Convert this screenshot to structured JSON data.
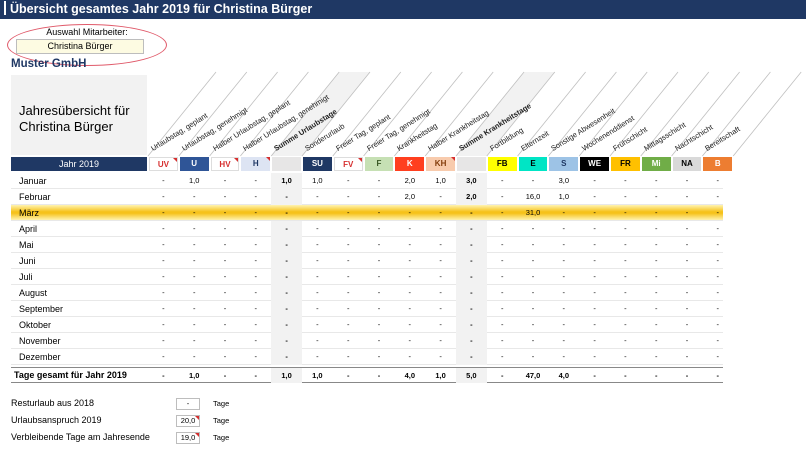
{
  "title": "Übersicht gesamtes Jahr 2019 für Christina Bürger",
  "selector": {
    "label": "Auswahl Mitarbeiter:",
    "value": "Christina Bürger"
  },
  "company": "Muster GmbH",
  "panel_title_line1": "Jahresübersicht für",
  "panel_title_line2": "Christina Bürger",
  "year_header": "Jahr 2019",
  "columns": [
    {
      "code": "UV",
      "label": "Urlaubstag, geplant",
      "bg": "#ffffff",
      "fg": "#d62f2f",
      "bold": false
    },
    {
      "code": "U",
      "label": "Urlaubstag, genehmigt",
      "bg": "#2f5597",
      "fg": "#ffffff",
      "bold": false
    },
    {
      "code": "HV",
      "label": "Halber Urlaubstag, geplant",
      "bg": "#ffffff",
      "fg": "#d62f2f",
      "bold": false
    },
    {
      "code": "H",
      "label": "Halber Urlaubstag, genehmigt",
      "bg": "#dde4f3",
      "fg": "#1f3864",
      "bold": false
    },
    {
      "code": "",
      "label": "Summe Urlaubstage",
      "bg": "#e7e6e6",
      "fg": "#000000",
      "bold": true
    },
    {
      "code": "SU",
      "label": "Sonderurlaub",
      "bg": "#1f3864",
      "fg": "#ffffff",
      "bold": false
    },
    {
      "code": "FV",
      "label": "Freier Tag, geplant",
      "bg": "#ffffff",
      "fg": "#d62f2f",
      "bold": false
    },
    {
      "code": "F",
      "label": "Freier Tag, genehmigt",
      "bg": "#c6e0b4",
      "fg": "#375623",
      "bold": false
    },
    {
      "code": "K",
      "label": "Krankheitstag",
      "bg": "#ff3f1f",
      "fg": "#ffffff",
      "bold": false
    },
    {
      "code": "KH",
      "label": "Halber Krankheitstag",
      "bg": "#f8cbad",
      "fg": "#833c0b",
      "bold": false
    },
    {
      "code": "",
      "label": "Summe Krankheitstage",
      "bg": "#e7e6e6",
      "fg": "#000000",
      "bold": true
    },
    {
      "code": "FB",
      "label": "Fortbildung",
      "bg": "#ffff00",
      "fg": "#000000",
      "bold": false
    },
    {
      "code": "E",
      "label": "Elternzeit",
      "bg": "#00e5c5",
      "fg": "#000000",
      "bold": false
    },
    {
      "code": "S",
      "label": "Sonstige Abwesenheit",
      "bg": "#9dc3e6",
      "fg": "#1f3864",
      "bold": false
    },
    {
      "code": "WE",
      "label": "Wochenenddienst",
      "bg": "#000000",
      "fg": "#ffffff",
      "bold": false
    },
    {
      "code": "FR",
      "label": "Frühschicht",
      "bg": "#ffc000",
      "fg": "#000000",
      "bold": false
    },
    {
      "code": "Mi",
      "label": "Mittagsschicht",
      "bg": "#70ad47",
      "fg": "#ffffff",
      "bold": false
    },
    {
      "code": "NA",
      "label": "Nachtschicht",
      "bg": "#d9d9d9",
      "fg": "#000000",
      "bold": false
    },
    {
      "code": "B",
      "label": "Bereitschaft",
      "bg": "#ed7d31",
      "fg": "#ffffff",
      "bold": false
    }
  ],
  "months": [
    {
      "name": "Januar",
      "values": [
        "-",
        "1,0",
        "-",
        "-",
        "1,0",
        "1,0",
        "-",
        "-",
        "2,0",
        "1,0",
        "3,0",
        "-",
        "-",
        "3,0",
        "-",
        "-",
        "-",
        "-",
        "-"
      ]
    },
    {
      "name": "Februar",
      "values": [
        "-",
        "-",
        "-",
        "-",
        "-",
        "-",
        "-",
        "-",
        "2,0",
        "-",
        "2,0",
        "-",
        "16,0",
        "1,0",
        "-",
        "-",
        "-",
        "-",
        "-"
      ]
    },
    {
      "name": "März",
      "values": [
        "-",
        "-",
        "-",
        "-",
        "-",
        "-",
        "-",
        "-",
        "-",
        "-",
        "-",
        "-",
        "31,0",
        "-",
        "-",
        "-",
        "-",
        "-",
        "-"
      ],
      "highlight": true
    },
    {
      "name": "April",
      "values": [
        "-",
        "-",
        "-",
        "-",
        "-",
        "-",
        "-",
        "-",
        "-",
        "-",
        "-",
        "-",
        "-",
        "-",
        "-",
        "-",
        "-",
        "-",
        "-"
      ]
    },
    {
      "name": "Mai",
      "values": [
        "-",
        "-",
        "-",
        "-",
        "-",
        "-",
        "-",
        "-",
        "-",
        "-",
        "-",
        "-",
        "-",
        "-",
        "-",
        "-",
        "-",
        "-",
        "-"
      ]
    },
    {
      "name": "Juni",
      "values": [
        "-",
        "-",
        "-",
        "-",
        "-",
        "-",
        "-",
        "-",
        "-",
        "-",
        "-",
        "-",
        "-",
        "-",
        "-",
        "-",
        "-",
        "-",
        "-"
      ]
    },
    {
      "name": "Juli",
      "values": [
        "-",
        "-",
        "-",
        "-",
        "-",
        "-",
        "-",
        "-",
        "-",
        "-",
        "-",
        "-",
        "-",
        "-",
        "-",
        "-",
        "-",
        "-",
        "-"
      ]
    },
    {
      "name": "August",
      "values": [
        "-",
        "-",
        "-",
        "-",
        "-",
        "-",
        "-",
        "-",
        "-",
        "-",
        "-",
        "-",
        "-",
        "-",
        "-",
        "-",
        "-",
        "-",
        "-"
      ]
    },
    {
      "name": "September",
      "values": [
        "-",
        "-",
        "-",
        "-",
        "-",
        "-",
        "-",
        "-",
        "-",
        "-",
        "-",
        "-",
        "-",
        "-",
        "-",
        "-",
        "-",
        "-",
        "-"
      ]
    },
    {
      "name": "Oktober",
      "values": [
        "-",
        "-",
        "-",
        "-",
        "-",
        "-",
        "-",
        "-",
        "-",
        "-",
        "-",
        "-",
        "-",
        "-",
        "-",
        "-",
        "-",
        "-",
        "-"
      ]
    },
    {
      "name": "November",
      "values": [
        "-",
        "-",
        "-",
        "-",
        "-",
        "-",
        "-",
        "-",
        "-",
        "-",
        "-",
        "-",
        "-",
        "-",
        "-",
        "-",
        "-",
        "-",
        "-"
      ]
    },
    {
      "name": "Dezember",
      "values": [
        "-",
        "-",
        "-",
        "-",
        "-",
        "-",
        "-",
        "-",
        "-",
        "-",
        "-",
        "-",
        "-",
        "-",
        "-",
        "-",
        "-",
        "-",
        "-"
      ]
    }
  ],
  "totals": {
    "label": "Tage gesamt für Jahr 2019",
    "values": [
      "-",
      "1,0",
      "-",
      "-",
      "1,0",
      "1,0",
      "-",
      "-",
      "4,0",
      "1,0",
      "5,0",
      "-",
      "47,0",
      "4,0",
      "-",
      "-",
      "-",
      "-",
      "-"
    ]
  },
  "footer": [
    {
      "label": "Resturlaub aus 2018",
      "value": "-",
      "unit": "Tage"
    },
    {
      "label": "Urlaubsanspruch 2019",
      "value": "20,0",
      "unit": "Tage"
    },
    {
      "label": "Verbleibende Tage am Jahresende",
      "value": "19,0",
      "unit": "Tage"
    }
  ]
}
